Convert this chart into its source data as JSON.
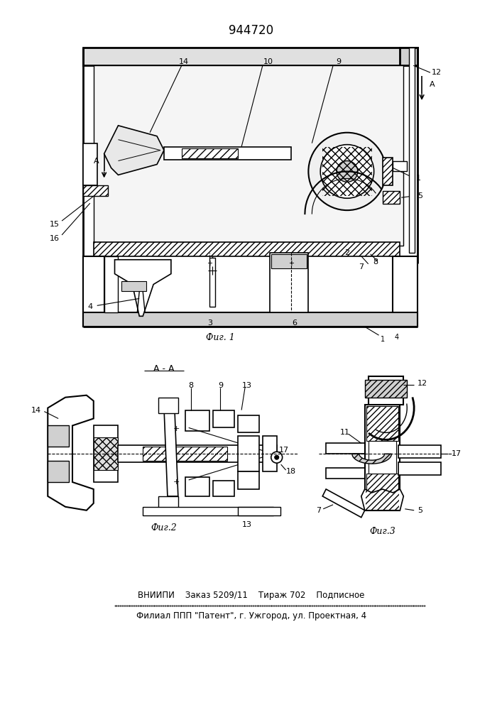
{
  "title": "944720",
  "bg_color": "#ffffff",
  "fig1_label": "Фиг. 1",
  "fig2_label": "Фиг.2",
  "fig3_label": "Фиг.3",
  "section_label": "A - A",
  "bottom_line1": "ВНИИПИ    Заказ 5209/11    Тираж 702    Подписное",
  "bottom_line2": "Филиал ППП \"Патент\", г. Ужгород, ул. Проектная, 4"
}
